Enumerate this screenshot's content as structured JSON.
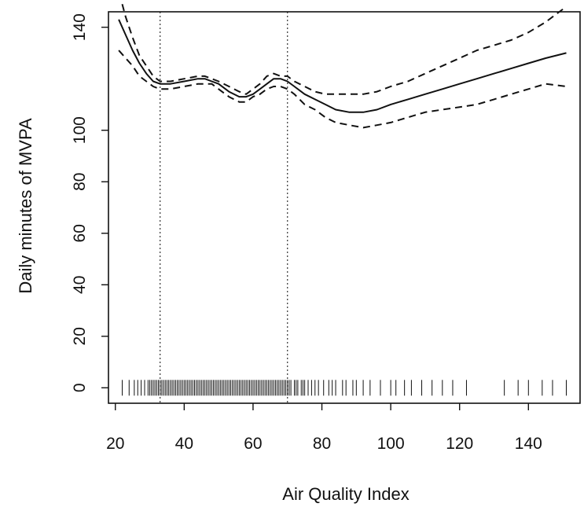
{
  "chart_data": {
    "type": "line",
    "title": "",
    "xlabel": "Air Quality Index",
    "ylabel": "Daily minutes of MVPA",
    "xlim": [
      18,
      155
    ],
    "ylim": [
      -6,
      146
    ],
    "xticks": [
      20,
      40,
      60,
      80,
      100,
      120,
      140
    ],
    "yticks": [
      0,
      20,
      40,
      60,
      80,
      100,
      140
    ],
    "xtick_labels": [
      "20",
      "40",
      "60",
      "80",
      "100",
      "120",
      "140"
    ],
    "ytick_labels": [
      "0",
      "20",
      "40",
      "60",
      "80",
      "100",
      "140"
    ],
    "grid": false,
    "legend": "none",
    "vlines": [
      33,
      70
    ],
    "series": [
      {
        "style": "solid",
        "x": [
          21,
          23,
          25,
          27,
          29,
          31,
          33,
          36,
          40,
          44,
          46,
          48,
          50,
          53,
          56,
          58,
          60,
          62,
          64,
          66,
          68,
          70,
          72,
          75,
          78,
          81,
          84,
          88,
          92,
          96,
          100,
          105,
          110,
          115,
          120,
          125,
          130,
          135,
          140,
          145,
          151
        ],
        "y": [
          143,
          137,
          131,
          126,
          122,
          119,
          118,
          118,
          119,
          120,
          120,
          119,
          118,
          115,
          113,
          113,
          114,
          116,
          118,
          120,
          120,
          119,
          117,
          114,
          112,
          110,
          108,
          107,
          107,
          108,
          110,
          112,
          114,
          116,
          118,
          120,
          122,
          124,
          126,
          128,
          130
        ]
      },
      {
        "style": "dashed",
        "x": [
          22,
          23,
          25,
          27,
          29,
          31,
          33,
          36,
          40,
          44,
          46,
          48,
          50,
          53,
          56,
          58,
          60,
          62,
          64,
          66,
          68,
          70,
          72,
          75,
          78,
          81,
          84,
          88,
          92,
          96,
          100,
          105,
          110,
          115,
          120,
          125,
          130,
          135,
          140,
          145,
          151
        ],
        "y": [
          149,
          144,
          136,
          129,
          125,
          121,
          119,
          119,
          120,
          121,
          121,
          120,
          119,
          117,
          115,
          114,
          116,
          118,
          121,
          122,
          121,
          121,
          119,
          117,
          115,
          114,
          114,
          114,
          114,
          115,
          117,
          119,
          122,
          125,
          128,
          131,
          133,
          135,
          138,
          142,
          148
        ]
      },
      {
        "style": "dashed",
        "x": [
          21,
          23,
          25,
          27,
          29,
          31,
          33,
          36,
          40,
          44,
          46,
          48,
          50,
          53,
          56,
          58,
          60,
          62,
          64,
          66,
          68,
          70,
          72,
          75,
          78,
          81,
          84,
          88,
          92,
          96,
          100,
          105,
          110,
          115,
          120,
          125,
          130,
          135,
          140,
          145,
          151
        ],
        "y": [
          131,
          128,
          125,
          121,
          119,
          117,
          116,
          116,
          117,
          118,
          118,
          118,
          116,
          113,
          111,
          111,
          113,
          114,
          116,
          117,
          117,
          116,
          114,
          110,
          108,
          105,
          103,
          102,
          101,
          102,
          103,
          105,
          107,
          108,
          109,
          110,
          112,
          114,
          116,
          118,
          117
        ]
      }
    ],
    "rug": [
      22,
      24,
      25.5,
      26.5,
      27.5,
      28.5,
      29.5,
      30,
      30.5,
      31,
      31.5,
      32,
      32.5,
      33,
      33.5,
      34,
      34.5,
      35,
      35.5,
      36,
      36.5,
      37,
      37.5,
      38,
      38.5,
      39,
      39.5,
      40,
      40.5,
      41,
      41.5,
      42,
      42.5,
      43,
      43.5,
      44,
      44.5,
      45,
      45.5,
      46,
      46.5,
      47,
      47.5,
      48,
      48.5,
      49,
      49.5,
      50,
      50.5,
      51,
      51.5,
      52,
      52.5,
      53,
      53.5,
      54,
      54.5,
      55,
      55.5,
      56,
      56.5,
      57,
      57.5,
      58,
      58.5,
      59,
      59.5,
      60,
      60.5,
      61,
      61.5,
      62,
      62.5,
      63,
      63.5,
      64,
      64.5,
      65,
      65.5,
      66,
      66.5,
      67,
      67.5,
      68,
      68.5,
      69,
      69.5,
      70,
      70.5,
      71,
      72,
      72.5,
      73,
      74,
      74.5,
      75,
      76,
      77,
      78,
      79,
      80.5,
      82,
      83,
      84,
      86,
      87,
      89,
      90,
      92,
      94,
      97,
      100,
      101.5,
      104,
      106,
      109,
      112,
      115,
      118,
      122,
      133,
      137,
      140,
      144,
      147,
      151
    ]
  }
}
